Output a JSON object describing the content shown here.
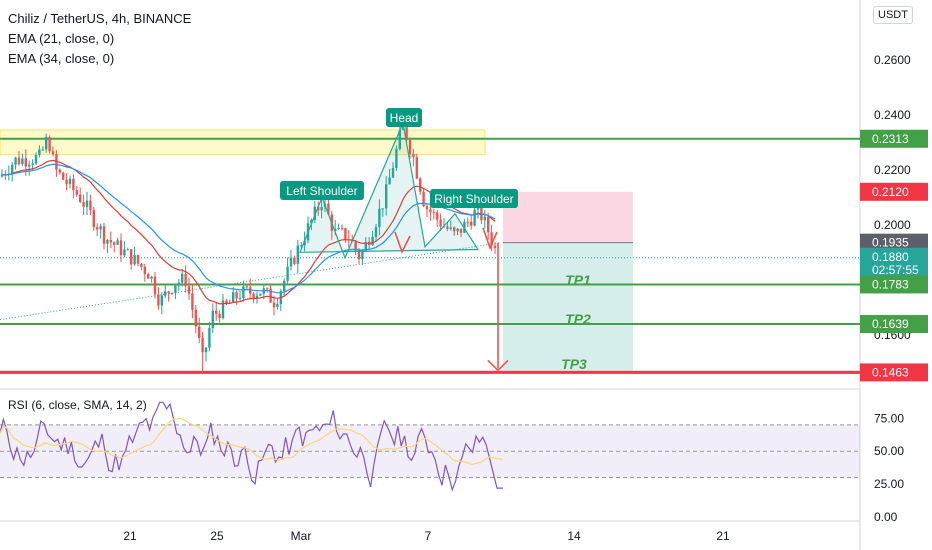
{
  "header": {
    "symbol": "Chiliz / TetherUS, 4h, BINANCE",
    "ema21": "EMA (21, close, 0)",
    "ema34": "EMA (34, close, 0)",
    "currency": "USDT"
  },
  "rsi_legend": "RSI (6, close, SMA, 14, 2)",
  "colors": {
    "up": "#26a69a",
    "down": "#ef5350",
    "ema21": "#e53935",
    "ema34": "#2196f3",
    "level": "#43a047",
    "support": "#f23645",
    "rsi": "#7e57c2",
    "rsi_ma": "#f9d776"
  },
  "annotations": {
    "head": "Head",
    "left_shoulder": "Left Shoulder",
    "right_shoulder": "Right Shoulder",
    "tp1": "TP1",
    "tp2": "TP2",
    "tp3": "TP3"
  },
  "chart_data": {
    "type": "candlestick",
    "price_axis": {
      "ticks": [
        0.26,
        0.24,
        0.22,
        0.2,
        0.18,
        0.16
      ],
      "tick_labels": [
        "0.2600",
        "0.2400",
        "0.2200",
        "0.2000",
        "0.1800",
        "0.1600"
      ],
      "range": [
        0.141,
        0.2785
      ]
    },
    "price_labels": [
      {
        "value": 0.2313,
        "label": "0.2313",
        "color": "#43a047"
      },
      {
        "value": 0.212,
        "label": "0.2120",
        "color": "#f23645"
      },
      {
        "value": 0.1935,
        "label": "0.1935",
        "color": "#5d606b"
      },
      {
        "value": 0.188,
        "label": "0.1880",
        "sub": "02:57:55",
        "color": "#26a69a"
      },
      {
        "value": 0.1783,
        "label": "0.1783",
        "color": "#43a047"
      },
      {
        "value": 0.1639,
        "label": "0.1639",
        "color": "#43a047"
      },
      {
        "value": 0.1463,
        "label": "0.1463",
        "color": "#f23645"
      }
    ],
    "levels": [
      {
        "value": 0.2313,
        "color": "#43a047"
      },
      {
        "value": 0.1783,
        "color": "#43a047"
      },
      {
        "value": 0.1639,
        "color": "#43a047"
      },
      {
        "value": 0.1463,
        "color": "#f23645"
      }
    ],
    "time_axis": {
      "labels": [
        "21",
        "25",
        "Mar",
        "7",
        "14",
        "21"
      ]
    },
    "rsi_axis": {
      "ticks": [
        75,
        50,
        25,
        0
      ],
      "tick_labels": [
        "75.00",
        "50.00",
        "25.00",
        "0.00"
      ],
      "range": [
        -3,
        95
      ],
      "band": [
        30,
        70
      ]
    }
  }
}
